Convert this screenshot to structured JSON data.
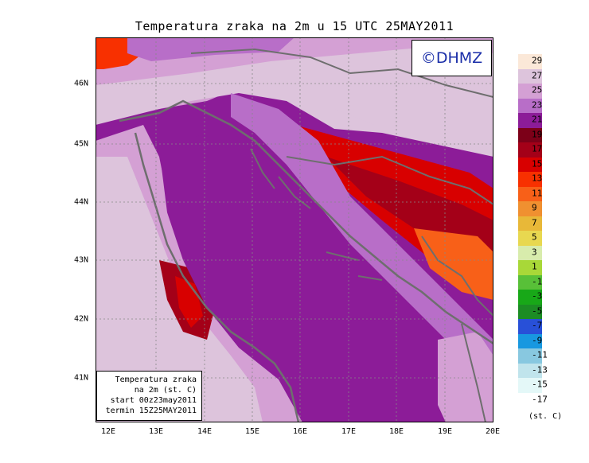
{
  "title": "Temperatura zraka na 2m u 15 UTC 25MAY2011",
  "credit": "©DHMZ",
  "info": {
    "line1": "Temperatura zraka",
    "line2": "na 2m (st. C)",
    "line3": "start 00z23may2011",
    "line4": "termin 15Z25MAY2011"
  },
  "x_ticks": [
    "12E",
    "13E",
    "14E",
    "15E",
    "16E",
    "17E",
    "18E",
    "19E",
    "20E"
  ],
  "y_ticks": [
    "46N",
    "45N",
    "44N",
    "43N",
    "42N",
    "41N"
  ],
  "legend": {
    "labels": [
      "29",
      "27",
      "25",
      "23",
      "21",
      "19",
      "17",
      "15",
      "13",
      "11",
      "9",
      "7",
      "5",
      "3",
      "1",
      "-1",
      "-3",
      "-5",
      "-7",
      "-9",
      "-11",
      "-13",
      "-15",
      "-17"
    ],
    "colors": [
      "#fbe8d8",
      "#ddc4dc",
      "#d4a0d4",
      "#b86ec8",
      "#8c1c98",
      "#7c0018",
      "#a40018",
      "#d80000",
      "#f83000",
      "#f86018",
      "#f09030",
      "#e8b838",
      "#e8d850",
      "#d8ecac",
      "#a8d838",
      "#58c038",
      "#18a818",
      "#1c8c24",
      "#2850d8",
      "#1898e0",
      "#88c8e0",
      "#c0e4ec",
      "#e4f8f8"
    ],
    "units": "(st. C)"
  },
  "colors": {
    "sea": "#8c1c98",
    "coast": "#6e6e6e",
    "title": "#000000",
    "credit": "#1a2ea8"
  }
}
